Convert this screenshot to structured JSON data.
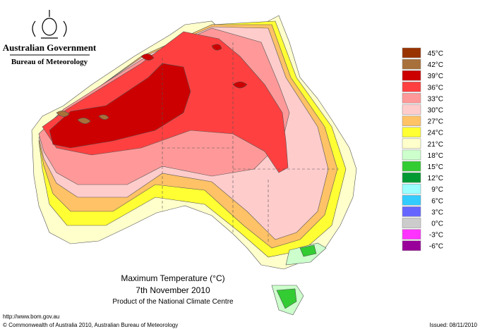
{
  "header": {
    "agency": "Australian Government",
    "bureau": "Bureau of Meteorology"
  },
  "map": {
    "title": "Maximum Temperature (°C)",
    "date": "7th November 2010",
    "product": "Product of the National Climate Centre"
  },
  "legend": [
    {
      "label": "45°C",
      "color": "#993300"
    },
    {
      "label": "42°C",
      "color": "#a8703a"
    },
    {
      "label": "39°C",
      "color": "#cc0000"
    },
    {
      "label": "36°C",
      "color": "#ff4040"
    },
    {
      "label": "33°C",
      "color": "#ff9999"
    },
    {
      "label": "30°C",
      "color": "#ffcccc"
    },
    {
      "label": "27°C",
      "color": "#ffc266"
    },
    {
      "label": "24°C",
      "color": "#ffff33"
    },
    {
      "label": "21°C",
      "color": "#ffffcc"
    },
    {
      "label": "18°C",
      "color": "#ccffcc"
    },
    {
      "label": "15°C",
      "color": "#33cc33"
    },
    {
      "label": "12°C",
      "color": "#009933"
    },
    {
      "label": "9°C",
      "color": "#99ffff"
    },
    {
      "label": "6°C",
      "color": "#33ccff"
    },
    {
      "label": "3°C",
      "color": "#6666ff"
    },
    {
      "label": "0°C",
      "color": "#cccccc"
    },
    {
      "label": "-3°C",
      "color": "#ff33ff"
    },
    {
      "label": "-6°C",
      "color": "#990099"
    }
  ],
  "footer": {
    "url": "http://www.bom.gov.au",
    "copyright": "© Commonwealth of Australia 2010, Australian Bureau of Meteorology",
    "issued": "Issued: 08/11/2010"
  }
}
